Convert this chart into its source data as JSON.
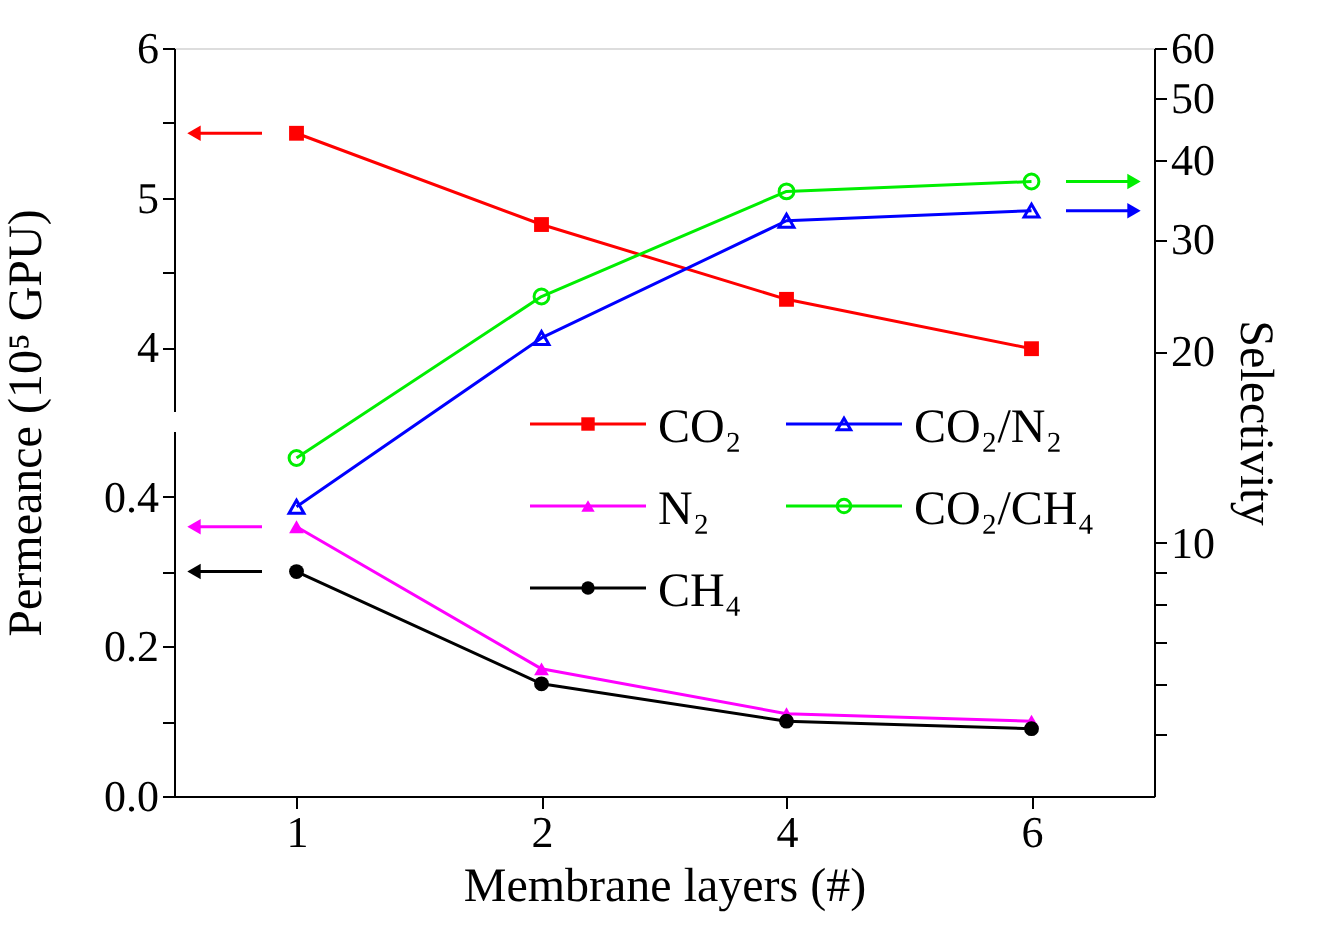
{
  "chart_data": {
    "type": "line",
    "xlabel": "Membrane layers (#)",
    "ylabel": "Permeance (10⁵ GPU)",
    "y2label": "Selectivity",
    "categories": [
      "1",
      "2",
      "4",
      "6"
    ],
    "ylim": [
      0,
      1
    ],
    "yticks": [
      {
        "value": 0,
        "label": "0.0"
      },
      {
        "value": 0.1,
        "label": null
      },
      0.2,
      {
        "value": 0.3,
        "label": null
      },
      0.4
    ],
    "y3lim": [
      1,
      6
    ],
    "y3ticks": [
      4,
      {
        "value": 4.5,
        "label": null
      },
      5,
      {
        "value": 5.5,
        "label": null
      },
      6
    ],
    "y2lim": [
      4,
      60
    ],
    "log": "y2",
    "y2ticks": [
      {
        "value": 5,
        "label": null
      },
      {
        "value": 6,
        "label": null
      },
      {
        "value": 7,
        "label": null
      },
      {
        "value": 8,
        "label": null
      },
      {
        "value": 9,
        "label": null
      },
      10,
      20,
      30,
      40,
      50,
      60
    ],
    "grid": false,
    "legend": "right",
    "line_style": "solid",
    "series": [
      {
        "name": "CO₂",
        "color": "#ff0000",
        "marker": "square",
        "axis": "y3",
        "values": [
          5.43,
          4.82,
          4.32,
          3.99
        ]
      },
      {
        "name": "CO₂/N₂",
        "color": "#0000ff",
        "marker": "triangle",
        "axis": "y2",
        "values": [
          11.4,
          21,
          32.1,
          33.3
        ]
      },
      {
        "name": "N₂",
        "color": "#ff00ff",
        "marker": "triangle",
        "values": [
          0.36,
          0.17,
          0.11,
          0.1
        ]
      },
      {
        "name": "CO₂/CH₄",
        "color": "#00ee00",
        "marker": "circle",
        "axis": "y2",
        "values": [
          13.6,
          24.4,
          35.7,
          37
        ]
      },
      {
        "name": "CH₄",
        "color": "#000000",
        "marker": "circle",
        "values": [
          0.3,
          0.15,
          0.1,
          0.09
        ]
      }
    ]
  }
}
